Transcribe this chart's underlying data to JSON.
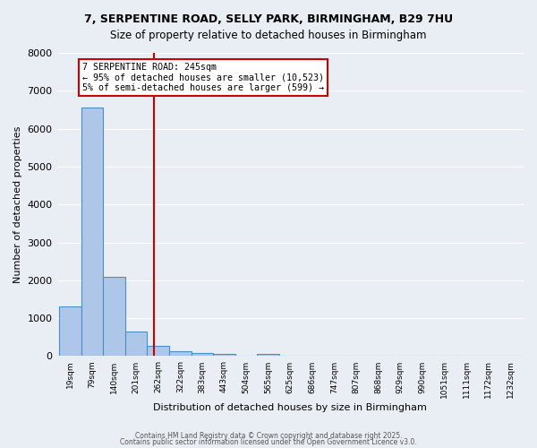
{
  "title_line1": "7, SERPENTINE ROAD, SELLY PARK, BIRMINGHAM, B29 7HU",
  "title_line2": "Size of property relative to detached houses in Birmingham",
  "xlabel": "Distribution of detached houses by size in Birmingham",
  "ylabel": "Number of detached properties",
  "bar_values": [
    1300,
    6550,
    2100,
    650,
    280,
    120,
    80,
    60,
    0,
    60,
    0,
    0,
    0,
    0,
    0,
    0,
    0,
    0,
    0,
    0,
    0
  ],
  "bar_labels": [
    "19sqm",
    "79sqm",
    "140sqm",
    "201sqm",
    "262sqm",
    "322sqm",
    "383sqm",
    "443sqm",
    "504sqm",
    "565sqm",
    "625sqm",
    "686sqm",
    "747sqm",
    "807sqm",
    "868sqm",
    "929sqm",
    "990sqm",
    "1051sqm",
    "1111sqm",
    "1172sqm",
    "1232sqm"
  ],
  "bar_color": "#aec6e8",
  "bar_edge_color": "#4a90c4",
  "bar_width": 1.0,
  "vline_x": 3.8,
  "vline_color": "#cc0000",
  "annotation_text": "7 SERPENTINE ROAD: 245sqm\n← 95% of detached houses are smaller (10,523)\n5% of semi-detached houses are larger (599) →",
  "annotation_box_color": "#cc0000",
  "annotation_text_color": "#000000",
  "ylim": [
    0,
    8000
  ],
  "yticks": [
    0,
    1000,
    2000,
    3000,
    4000,
    5000,
    6000,
    7000,
    8000
  ],
  "background_color": "#e8eef4",
  "grid_color": "#ffffff",
  "footer_line1": "Contains HM Land Registry data © Crown copyright and database right 2025.",
  "footer_line2": "Contains public sector information licensed under the Open Government Licence v3.0."
}
